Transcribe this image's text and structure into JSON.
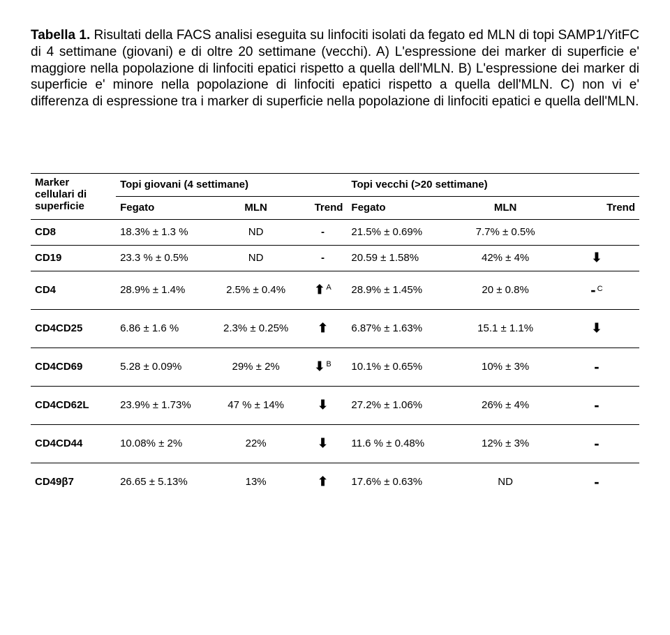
{
  "caption": {
    "label": "Tabella 1.",
    "text": " Risultati della FACS analisi eseguita su linfociti isolati da fegato ed MLN di topi SAMP1/YitFC di 4 settimane (giovani) e di oltre 20 settimane (vecchi). A) L'espressione dei marker di superficie e' maggiore nella popolazione di linfociti epatici rispetto a quella dell'MLN. B) L'espressione dei marker di superficie e' minore nella popolazione di linfociti epatici rispetto a quella dell'MLN. C) non vi e' differenza di espressione tra i marker di superficie nella popolazione di linfociti epatici e quella dell'MLN."
  },
  "headers": {
    "col0_line1": "Marker",
    "col0_line2": "cellulari di",
    "col0_line3": "superficie",
    "young_group": "Topi giovani (4 settimane)",
    "old_group": "Topi vecchi (>20 settimane)",
    "fegato": "Fegato",
    "mln": "MLN",
    "trend": "Trend"
  },
  "arrows": {
    "up": "⬆",
    "down": "⬇"
  },
  "rows": [
    {
      "short": true,
      "marker": "CD8",
      "young_fegato": "18.3%  ± 1.3 %",
      "young_mln": "ND",
      "young_trend": "-",
      "old_fegato": "21.5%  ± 0.69%",
      "old_mln": "7.7%  ± 0.5%",
      "old_trend": ""
    },
    {
      "short": true,
      "marker": "CD19",
      "young_fegato": "23.3 % ± 0.5%",
      "young_mln": "ND",
      "young_trend": "-",
      "old_fegato": "20.59 ± 1.58%",
      "old_mln": "42%  ± 4%",
      "old_trend_arrow": "down"
    },
    {
      "marker": "CD4",
      "young_fegato": "28.9% ± 1.4%",
      "young_mln": "2.5% ± 0.4%",
      "young_trend_arrow": "up",
      "young_trend_sup": "A",
      "old_fegato": "28.9% ± 1.45%",
      "old_mln": "20 ± 0.8%",
      "old_trend_dash": true,
      "old_trend_sup": "C"
    },
    {
      "marker": "CD4CD25",
      "young_fegato": "6.86  ± 1.6 %",
      "young_mln": "2.3%  ± 0.25%",
      "young_trend_arrow": "up",
      "old_fegato": "6.87%  ± 1.63%",
      "old_mln": "15.1 ± 1.1%",
      "old_trend_arrow": "down"
    },
    {
      "marker": "CD4CD69",
      "young_fegato": "5.28  ± 0.09%",
      "young_mln": "29% ± 2%",
      "young_trend_arrow": "down",
      "young_trend_sup": "B",
      "old_fegato": "10.1%  ± 0.65%",
      "old_mln": "10% ± 3%",
      "old_trend_dash": true
    },
    {
      "marker": "CD4CD62L",
      "young_fegato": "23.9%  ± 1.73%",
      "young_mln": "47 % ± 14%",
      "young_trend_arrow": "down",
      "old_fegato": "27.2%  ± 1.06%",
      "old_mln": "26% ± 4%",
      "old_trend_dash": true
    },
    {
      "marker": "CD4CD44",
      "young_fegato": "10.08%  ± 2%",
      "young_mln": "22%",
      "young_trend_arrow": "down",
      "old_fegato": "11.6 % ± 0.48%",
      "old_mln": "12% ± 3%",
      "old_trend_dash": true
    },
    {
      "marker": "CD49β7",
      "young_fegato": "26.65  ± 5.13%",
      "young_mln": "13%",
      "young_trend_arrow": "up",
      "old_fegato": "17.6% ± 0.63%",
      "old_mln": "ND",
      "old_trend_dash": true,
      "last": true
    }
  ]
}
